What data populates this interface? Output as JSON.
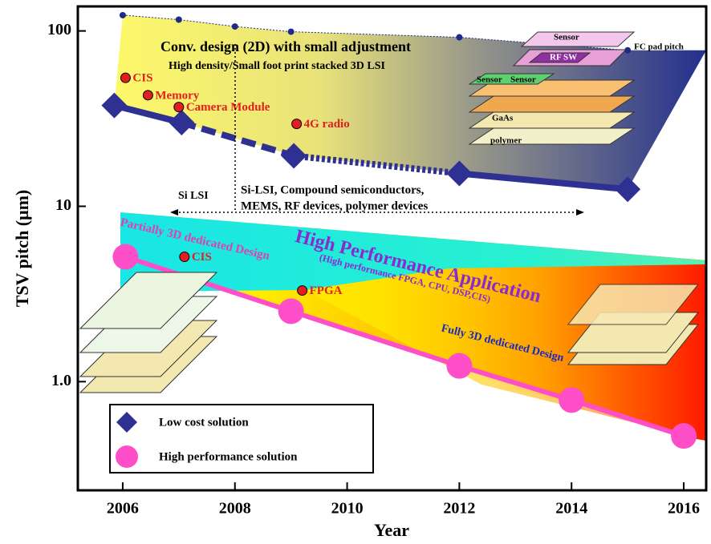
{
  "chart_data": {
    "type": "line",
    "x_label": "Year",
    "y_label": "TSV pitch  (μm)",
    "log_y": true,
    "xlim": [
      2005.2,
      2016.4
    ],
    "xticks": [
      2006,
      2008,
      2010,
      2012,
      2014,
      2016
    ],
    "ylim": [
      0.24,
      138
    ],
    "yticks": [
      100,
      10,
      {
        "value": 1,
        "label": "1.0"
      }
    ],
    "series": [
      {
        "name": "Low cost solution",
        "color": "#2e3192",
        "marker": "diamond",
        "x": [
          2005.85,
          2007.05,
          2009.05,
          2012,
          2015
        ],
        "values": [
          37.6,
          30,
          19.4,
          15.4,
          12.5
        ]
      },
      {
        "name": "High performance solution",
        "color": "#ff4fc8",
        "marker": "circle",
        "x": [
          2006.05,
          2009,
          2012,
          2014,
          2016
        ],
        "values": [
          5.15,
          2.52,
          1.23,
          0.785,
          0.49
        ]
      }
    ],
    "fc_pad_pitch": {
      "label": "FC pad pitch",
      "color": "#1f2a8a",
      "x": [
        2006,
        2007,
        2008,
        2009,
        2012,
        2015
      ],
      "values": [
        123,
        116,
        106,
        99,
        92,
        77.6
      ]
    },
    "applications": [
      {
        "name": "CIS",
        "x": 2006.05,
        "value": 54
      },
      {
        "name": "Memory",
        "x": 2006.45,
        "value": 43
      },
      {
        "name": "Camera Module",
        "x": 2007.0,
        "value": 36.8
      },
      {
        "name": "4G radio",
        "x": 2009.1,
        "value": 29.5
      },
      {
        "name": "CIS",
        "x": 2007.1,
        "value": 5.15
      },
      {
        "name": "FPGA",
        "x": 2009.2,
        "value": 3.31
      }
    ],
    "annotations": [
      "Conv. design (2D) with small adjustment",
      "High density/Small foot print stacked 3D LSI",
      "Si LSI",
      "Si-LSI, Compound semiconductors,",
      "MEMS, RF devices, polymer devices",
      "Partially 3D dedicated Design",
      "High Performance Application",
      "(High performance FPGA, CPU, DSP,CIS)",
      "Fully 3D dedicated Design"
    ],
    "stack_labels": [
      "Sensor",
      "RF SW",
      "Sensor",
      "Sensor",
      "GaAs",
      "polymer"
    ]
  }
}
